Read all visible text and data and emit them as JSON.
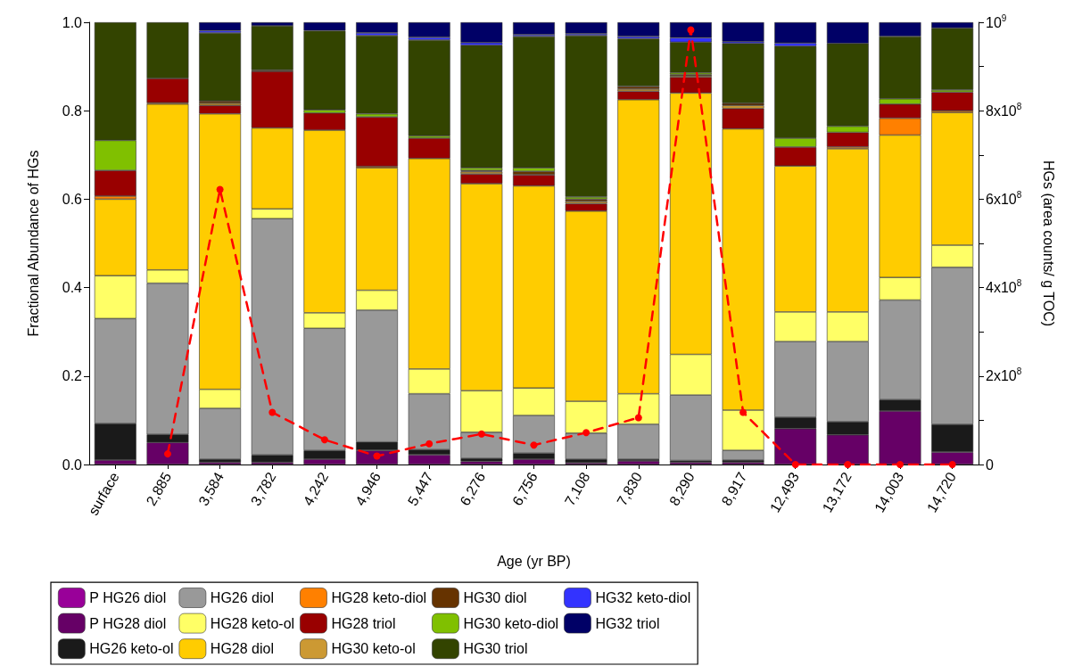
{
  "chart_data": {
    "type": "bar",
    "stacked": true,
    "xlabel": "Age (yr BP)",
    "ylabel": "Fractional Abundance of HGs",
    "y2label": "HGs (area counts/ g TOC)",
    "categories": [
      "surface",
      "2,885",
      "3,584",
      "3,782",
      "4,242",
      "4,946",
      "5,447",
      "6,276",
      "6,756",
      "7,108",
      "7,830",
      "8,290",
      "8,917",
      "12,493",
      "13,172",
      "14,003",
      "14,720"
    ],
    "ylim": [
      0,
      1
    ],
    "yticks": [
      {
        "value": 0,
        "label": "0.0"
      },
      0.2,
      0.4,
      0.6,
      0.8,
      {
        "value": 1,
        "label": "1.0"
      }
    ],
    "y2lim": [
      0,
      1000000000
    ],
    "y2ticks": [
      0,
      {
        "value": 100000000,
        "label": null
      },
      {
        "value": 200000000,
        "label": "2x10$^{8}$"
      },
      {
        "value": 300000000,
        "label": null
      },
      {
        "value": 400000000,
        "label": "4x10$^{8}$"
      },
      {
        "value": 500000000,
        "label": null
      },
      {
        "value": 600000000,
        "label": "6x10$^{8}$"
      },
      {
        "value": 700000000,
        "label": null
      },
      {
        "value": 800000000,
        "label": "8x10$^{8}$"
      },
      {
        "value": 900000000,
        "label": null
      },
      {
        "value": 1000000000,
        "label": "10$^{9}$"
      }
    ],
    "legend": "bottom",
    "grid": false,
    "marker": "circle",
    "line_style": "dashed",
    "series": [
      {
        "name": "P HG26 diol",
        "color": "#990099",
        "values": [
          0,
          0,
          0,
          0,
          0,
          0,
          0,
          0,
          0,
          0,
          0,
          0,
          0,
          0,
          0,
          0,
          0
        ]
      },
      {
        "name": "P HG28 diol",
        "color": "#660066",
        "values": [
          0.01,
          0.05,
          0.005,
          0.005,
          0.012,
          0.032,
          0.022,
          0.007,
          0.012,
          0.004,
          0.008,
          0.005,
          0.005,
          0.081,
          0.067,
          0.121,
          0.028
        ]
      },
      {
        "name": "HG26 keto-ol",
        "color": "#1a1a1a",
        "values": [
          0.083,
          0.018,
          0.007,
          0.017,
          0.02,
          0.019,
          0.012,
          0.007,
          0.014,
          0.008,
          0.004,
          0.004,
          0.005,
          0.026,
          0.03,
          0.026,
          0.063
        ]
      },
      {
        "name": "HG26 diol",
        "color": "#999999",
        "values": [
          0.237,
          0.342,
          0.115,
          0.534,
          0.276,
          0.298,
          0.126,
          0.059,
          0.085,
          0.059,
          0.079,
          0.148,
          0.022,
          0.171,
          0.181,
          0.225,
          0.355
        ]
      },
      {
        "name": "HG28 keto-ol",
        "color": "#ffff66",
        "values": [
          0.097,
          0.03,
          0.043,
          0.022,
          0.035,
          0.045,
          0.056,
          0.094,
          0.062,
          0.072,
          0.069,
          0.092,
          0.091,
          0.067,
          0.067,
          0.051,
          0.05
        ]
      },
      {
        "name": "HG28 diol",
        "color": "#ffcc00",
        "values": [
          0.173,
          0.375,
          0.623,
          0.183,
          0.413,
          0.277,
          0.476,
          0.468,
          0.457,
          0.43,
          0.665,
          0.591,
          0.636,
          0.33,
          0.369,
          0.322,
          0.3
        ]
      },
      {
        "name": "HG28 keto-diol",
        "color": "#ff8000",
        "values": [
          0.007,
          0.003,
          0,
          0,
          0,
          0.003,
          0,
          0,
          0,
          0,
          0,
          0,
          0,
          0,
          0.004,
          0.038,
          0.004
        ]
      },
      {
        "name": "HG28 triol",
        "color": "#990000",
        "values": [
          0.058,
          0.055,
          0.019,
          0.128,
          0.039,
          0.112,
          0.046,
          0.022,
          0.025,
          0.017,
          0.019,
          0.036,
          0.046,
          0.043,
          0.033,
          0.032,
          0.042
        ]
      },
      {
        "name": "HG30 keto-ol",
        "color": "#cc9933",
        "values": [
          0,
          0,
          0.005,
          0,
          0,
          0,
          0,
          0.005,
          0,
          0.005,
          0.005,
          0.003,
          0.007,
          0,
          0,
          0,
          0
        ]
      },
      {
        "name": "HG30 diol",
        "color": "#663300",
        "values": [
          0,
          0,
          0.005,
          0.003,
          0,
          0,
          0,
          0.003,
          0.008,
          0.005,
          0.006,
          0.003,
          0.005,
          0,
          0,
          0,
          0
        ]
      },
      {
        "name": "HG30 keto-diol",
        "color": "#80c000",
        "values": [
          0.068,
          0,
          0,
          0,
          0.007,
          0.007,
          0.005,
          0.006,
          0.008,
          0.005,
          0,
          0.004,
          0,
          0.02,
          0.014,
          0.012,
          0.005
        ]
      },
      {
        "name": "HG30 triol",
        "color": "#334400",
        "values": [
          0.267,
          0.127,
          0.154,
          0.1,
          0.179,
          0.177,
          0.217,
          0.277,
          0.297,
          0.365,
          0.108,
          0.069,
          0.135,
          0.208,
          0.187,
          0.141,
          0.14
        ]
      },
      {
        "name": "HG32 keto-diol",
        "color": "#3333ff",
        "values": [
          0,
          0,
          0.005,
          0,
          0,
          0.006,
          0.006,
          0.006,
          0.004,
          0.004,
          0.005,
          0.01,
          0.004,
          0.007,
          0,
          0,
          0
        ]
      },
      {
        "name": "HG32 triol",
        "color": "#000066",
        "values": [
          0,
          0,
          0.019,
          0.008,
          0.019,
          0.024,
          0.034,
          0.046,
          0.028,
          0.026,
          0.032,
          0.035,
          0.044,
          0.047,
          0.048,
          0.032,
          0.013
        ]
      },
      {
        "type": "line",
        "axis": "y2",
        "color": "#ff0000",
        "values": [
          null,
          24000000,
          622000000,
          118000000,
          56000000,
          19000000,
          47000000,
          69000000,
          44000000,
          72000000,
          106000000,
          983000000,
          118000000,
          0,
          0,
          0,
          0
        ]
      }
    ]
  }
}
